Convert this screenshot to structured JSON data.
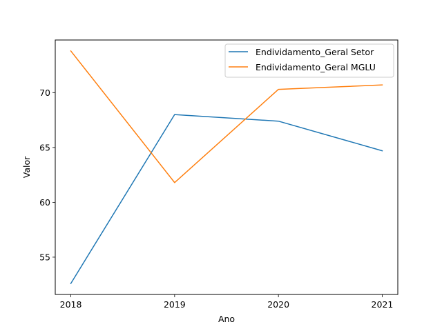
{
  "chart_data": {
    "type": "line",
    "xlabel": "Ano",
    "ylabel": "Valor",
    "categories": [
      "2018",
      "2019",
      "2020",
      "2021"
    ],
    "x": [
      2018,
      2019,
      2020,
      2021
    ],
    "xlim": [
      2017.85,
      2021.15
    ],
    "ylim": [
      51.6,
      74.8
    ],
    "yticks": [
      55,
      60,
      65,
      70
    ],
    "grid": false,
    "legend_position": "top-right",
    "series": [
      {
        "name": "Endividamento_Geral Setor",
        "color": "#1f77b4",
        "values": [
          52.6,
          68.0,
          67.4,
          64.7
        ]
      },
      {
        "name": "Endividamento_Geral MGLU",
        "color": "#ff7f0e",
        "values": [
          73.8,
          61.8,
          70.3,
          70.7
        ]
      }
    ]
  }
}
